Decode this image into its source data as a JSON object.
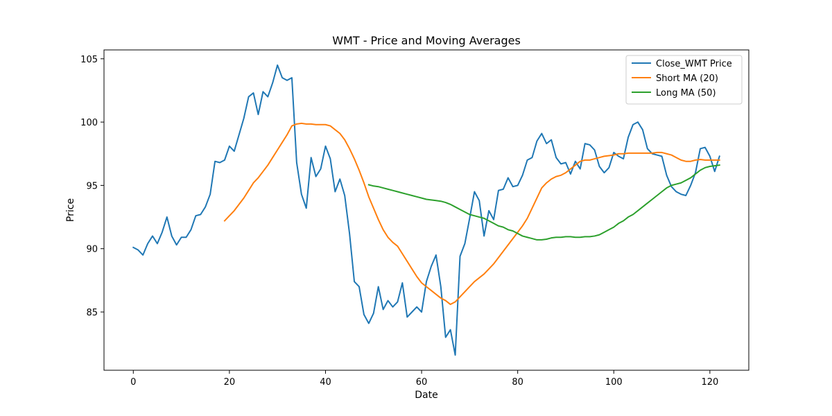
{
  "chart_data": {
    "type": "line",
    "title": "WMT - Price and Moving Averages",
    "xlabel": "Date",
    "ylabel": "Price",
    "xlim": [
      -6.1,
      128.1
    ],
    "ylim": [
      80.4,
      105.7
    ],
    "xticks": [
      0,
      20,
      40,
      60,
      80,
      100,
      120
    ],
    "yticks": [
      85,
      90,
      95,
      100,
      105
    ],
    "grid": false,
    "legend_position": "top-right",
    "series": [
      {
        "name": "Close_WMT Price",
        "color": "#1f77b4",
        "x_start": 0,
        "values": [
          90.1,
          89.9,
          89.5,
          90.4,
          91.0,
          90.4,
          91.3,
          92.5,
          91.0,
          90.3,
          90.9,
          90.9,
          91.5,
          92.6,
          92.7,
          93.3,
          94.3,
          96.9,
          96.8,
          97.0,
          98.1,
          97.7,
          99.0,
          100.3,
          102.0,
          102.3,
          100.6,
          102.4,
          102.0,
          103.1,
          104.5,
          103.5,
          103.3,
          103.5,
          96.8,
          94.3,
          93.2,
          97.2,
          95.7,
          96.3,
          98.1,
          97.1,
          94.5,
          95.5,
          94.2,
          91.2,
          87.4,
          87.0,
          84.8,
          84.1,
          84.9,
          87.0,
          85.2,
          85.9,
          85.4,
          85.8,
          87.3,
          84.6,
          85.0,
          85.4,
          85.0,
          87.4,
          88.6,
          89.5,
          87.0,
          83.0,
          83.6,
          81.6,
          89.4,
          90.4,
          92.4,
          94.5,
          93.8,
          91.0,
          93.0,
          92.3,
          94.6,
          94.7,
          95.6,
          94.9,
          95.0,
          95.8,
          97.0,
          97.2,
          98.5,
          99.1,
          98.3,
          98.6,
          97.2,
          96.7,
          96.8,
          95.9,
          96.9,
          96.3,
          98.3,
          98.2,
          97.8,
          96.5,
          96.0,
          96.4,
          97.6,
          97.3,
          97.1,
          98.8,
          99.8,
          100.0,
          99.4,
          97.9,
          97.5,
          97.4,
          97.3,
          95.8,
          94.9,
          94.5,
          94.3,
          94.2,
          95.0,
          96.0,
          97.9,
          98.0,
          97.3,
          96.1,
          97.3
        ]
      },
      {
        "name": "Short MA (20)",
        "color": "#ff7f0e",
        "x_start": 19,
        "values": [
          92.2,
          92.6,
          93.0,
          93.5,
          94.0,
          94.6,
          95.2,
          95.6,
          96.1,
          96.6,
          97.2,
          97.8,
          98.4,
          99.0,
          99.7,
          99.85,
          99.9,
          99.85,
          99.85,
          99.8,
          99.8,
          99.8,
          99.7,
          99.4,
          99.1,
          98.6,
          97.9,
          97.1,
          96.2,
          95.2,
          94.1,
          93.2,
          92.3,
          91.5,
          90.9,
          90.5,
          90.2,
          89.6,
          89.0,
          88.4,
          87.8,
          87.3,
          87.0,
          86.7,
          86.4,
          86.1,
          85.9,
          85.6,
          85.8,
          86.2,
          86.6,
          87.0,
          87.4,
          87.7,
          88.0,
          88.4,
          88.8,
          89.3,
          89.8,
          90.3,
          90.8,
          91.3,
          91.8,
          92.4,
          93.2,
          94.0,
          94.8,
          95.2,
          95.5,
          95.7,
          95.8,
          96.0,
          96.3,
          96.6,
          96.9,
          97.0,
          97.0,
          97.1,
          97.2,
          97.3,
          97.35,
          97.4,
          97.5,
          97.5,
          97.55,
          97.55,
          97.55,
          97.55,
          97.55,
          97.55,
          97.6,
          97.6,
          97.5,
          97.4,
          97.2,
          97.0,
          96.9,
          96.9,
          97.0,
          97.05,
          97.0,
          97.0,
          97.0,
          97.0
        ]
      },
      {
        "name": "Long MA (50)",
        "color": "#2ca02c",
        "x_start": 49,
        "values": [
          95.05,
          94.95,
          94.9,
          94.8,
          94.7,
          94.6,
          94.5,
          94.4,
          94.3,
          94.2,
          94.1,
          94.0,
          93.9,
          93.85,
          93.8,
          93.75,
          93.65,
          93.5,
          93.3,
          93.1,
          92.9,
          92.7,
          92.6,
          92.5,
          92.4,
          92.2,
          92.0,
          91.8,
          91.7,
          91.5,
          91.4,
          91.2,
          91.0,
          90.9,
          90.8,
          90.7,
          90.7,
          90.75,
          90.85,
          90.9,
          90.9,
          90.95,
          90.95,
          90.9,
          90.9,
          90.95,
          90.95,
          91.0,
          91.1,
          91.3,
          91.5,
          91.7,
          92.0,
          92.2,
          92.5,
          92.7,
          93.0,
          93.3,
          93.6,
          93.9,
          94.2,
          94.5,
          94.8,
          95.0,
          95.1,
          95.2,
          95.4,
          95.6,
          95.9,
          96.2,
          96.4,
          96.5,
          96.55,
          96.6
        ]
      }
    ]
  }
}
